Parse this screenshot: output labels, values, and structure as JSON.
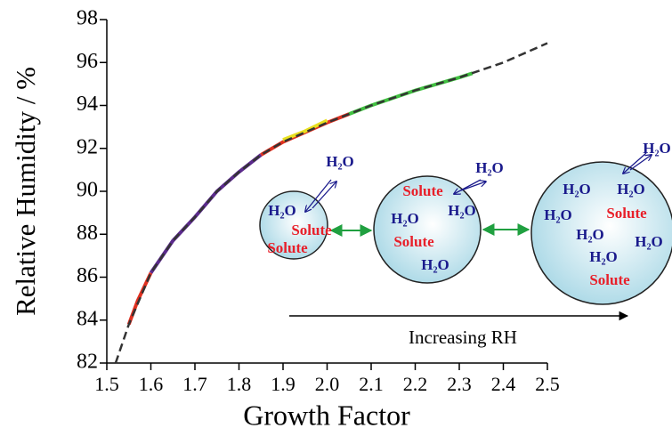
{
  "chart_data": {
    "type": "line",
    "xlabel": "Growth Factor",
    "ylabel": "Relative Humidity / %",
    "xlim": [
      1.5,
      2.5
    ],
    "ylim": [
      82,
      98
    ],
    "xticks": [
      1.5,
      1.6,
      1.7,
      1.8,
      1.9,
      {
        "value": 2,
        "label": "2.0"
      },
      2.1,
      2.2,
      2.3,
      2.4,
      2.5
    ],
    "yticks": [
      82,
      84,
      86,
      88,
      90,
      92,
      94,
      96,
      98
    ],
    "series": [
      {
        "color": "#e03020",
        "x": [
          1.55,
          1.57,
          1.6
        ],
        "values": [
          83.8,
          84.9,
          86.2
        ]
      },
      {
        "color": "#5b2a8c",
        "x": [
          1.6,
          1.65,
          1.7,
          1.75,
          1.8,
          1.85
        ],
        "values": [
          86.2,
          87.7,
          88.8,
          90.0,
          90.9,
          91.7
        ]
      },
      {
        "color": "#e03020",
        "x": [
          1.85,
          1.9,
          2.0,
          2.05
        ],
        "values": [
          91.7,
          92.3,
          93.2,
          93.6
        ]
      },
      {
        "color": "#e8e020",
        "x": [
          1.9,
          1.95,
          2.0
        ],
        "values": [
          92.4,
          92.8,
          93.3
        ]
      },
      {
        "color": "#40c040",
        "x": [
          2.05,
          2.1,
          2.2,
          2.3,
          2.33
        ],
        "values": [
          93.6,
          94.0,
          94.7,
          95.3,
          95.5
        ]
      },
      {
        "color": "#333333",
        "dashed": true,
        "x": [
          1.52,
          1.55,
          1.6,
          1.65,
          1.7,
          1.75,
          1.8,
          1.85,
          1.9,
          2.0,
          2.1,
          2.2,
          2.3,
          2.4,
          2.5
        ],
        "values": [
          82,
          83.8,
          86.2,
          87.7,
          88.8,
          90.0,
          90.9,
          91.7,
          92.3,
          93.2,
          94.0,
          94.7,
          95.3,
          96.0,
          96.9
        ]
      }
    ],
    "annotations": {
      "arrow_label": "Increasing RH",
      "particles": [
        {
          "outside": "H₂O",
          "inside": [
            "H₂O",
            "Solute",
            "Solute"
          ]
        },
        {
          "outside": "H₂O",
          "inside": [
            "Solute",
            "H₂O",
            "H₂O",
            "Solute",
            "H₂O"
          ]
        },
        {
          "outside": "H₂O",
          "inside": [
            "H₂O",
            "H₂O",
            "H₂O",
            "Solute",
            "H₂O",
            "H₂O",
            "H₂O",
            "Solute"
          ]
        }
      ]
    }
  }
}
